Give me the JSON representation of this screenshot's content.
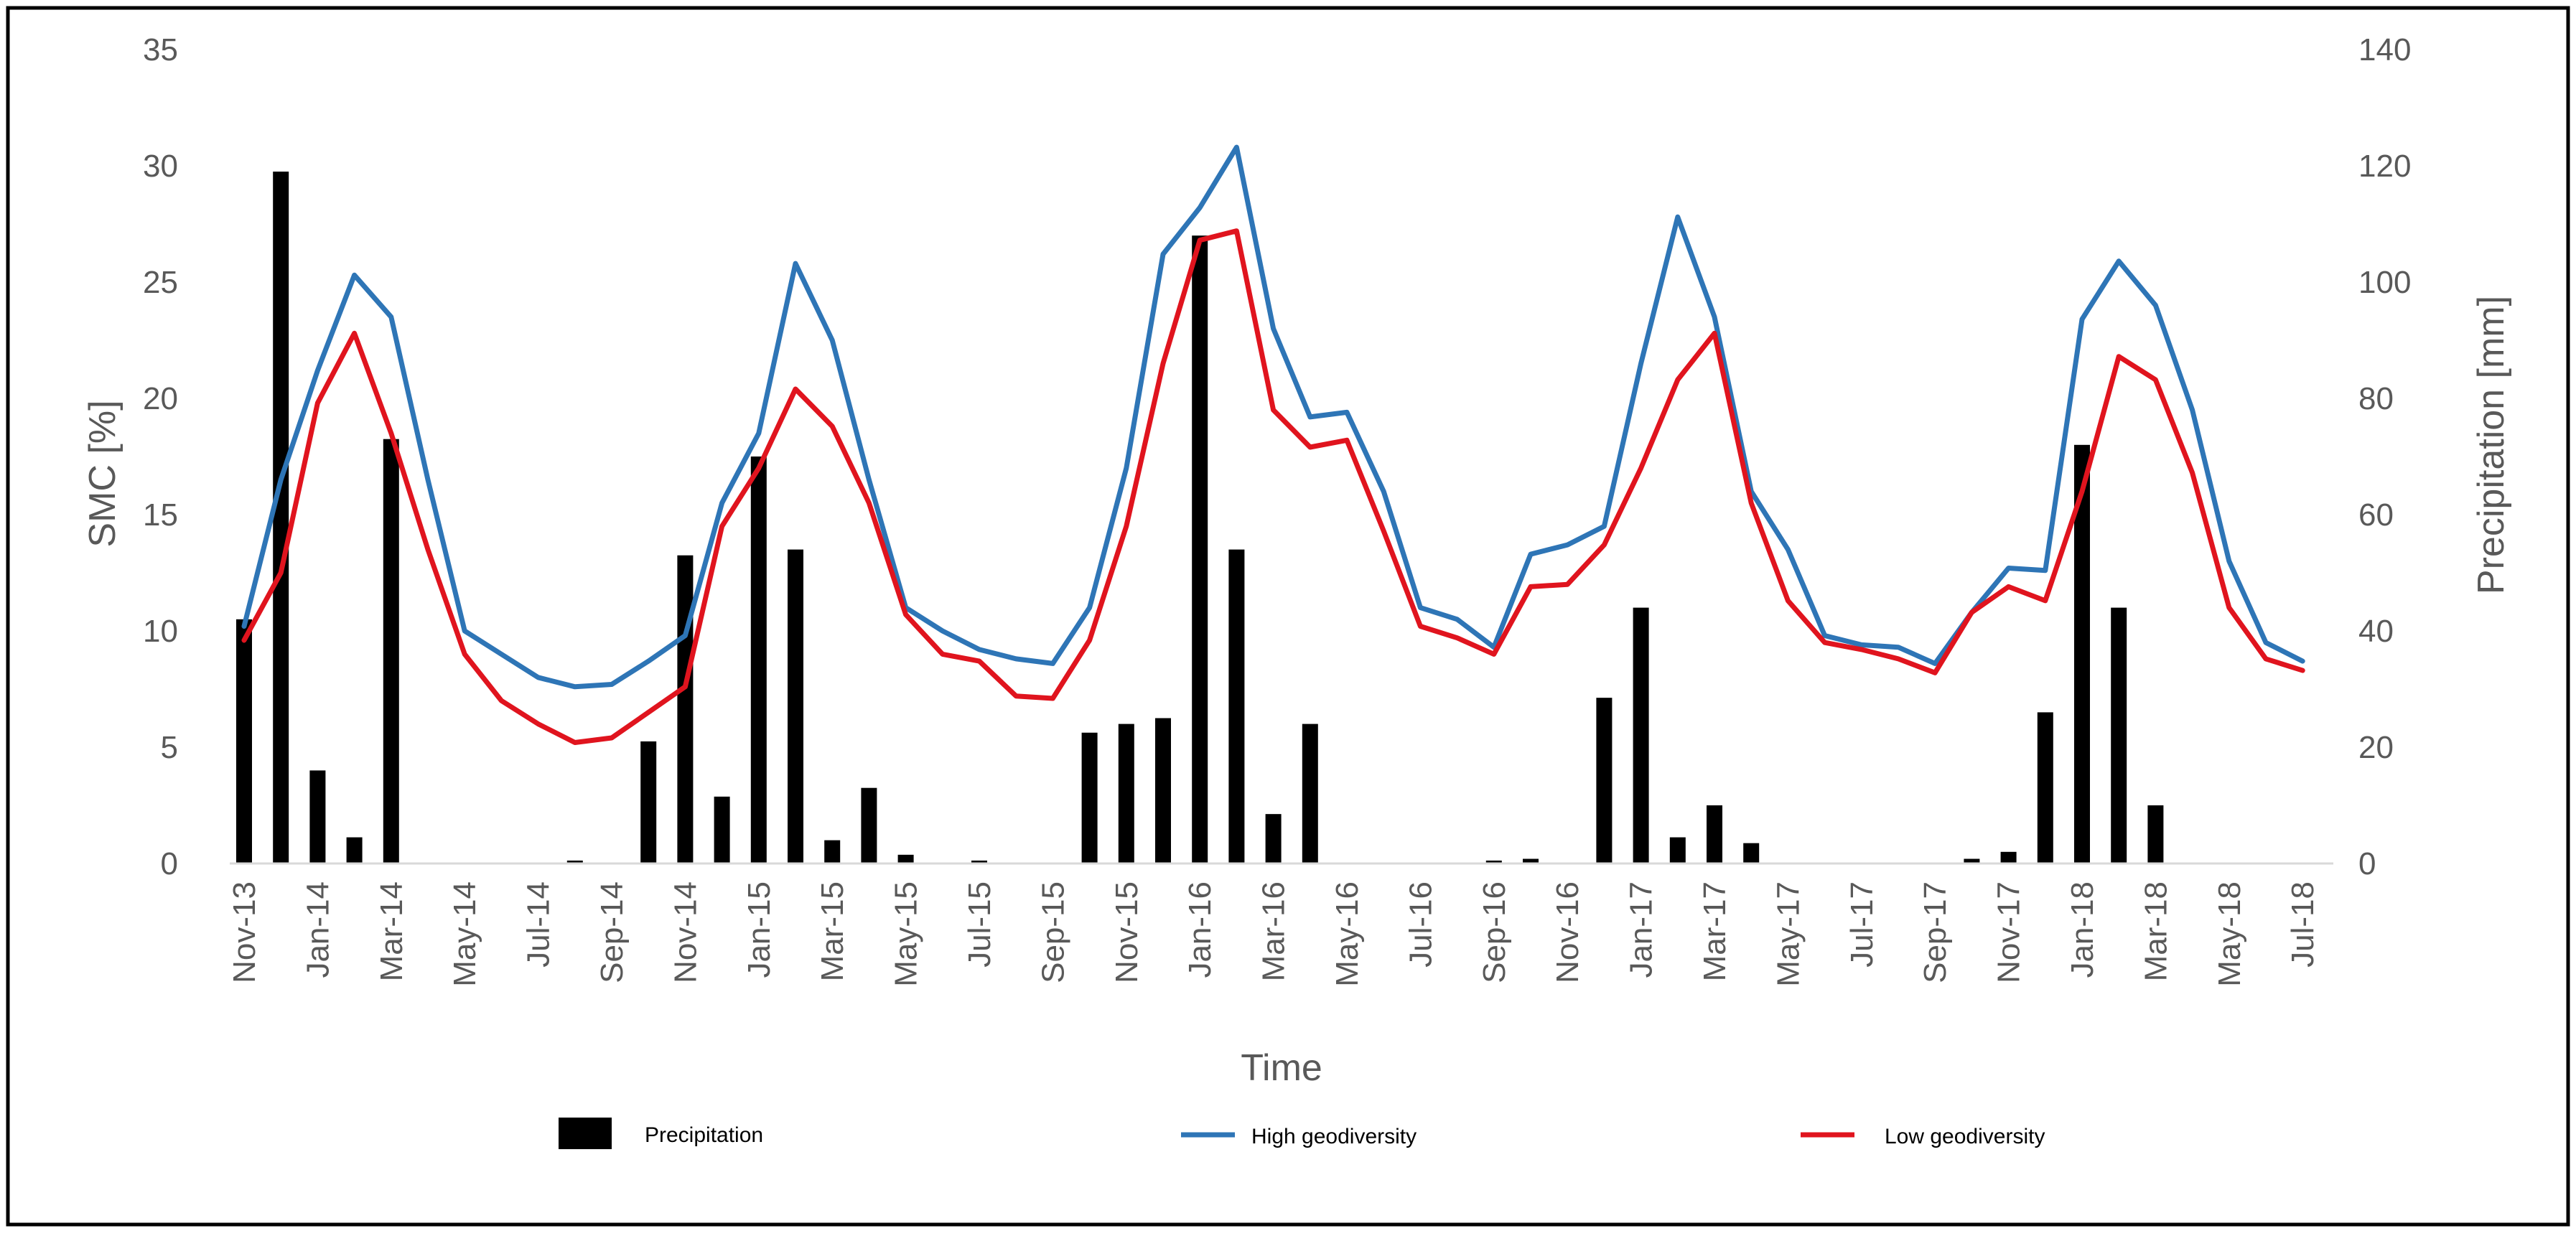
{
  "chart_data": {
    "type": "bar+line",
    "title": "",
    "xlabel": "Time",
    "ylabel_left": "SMC [%]",
    "ylabel_right": "Precipitation [mm]",
    "ylim_left": [
      0,
      35
    ],
    "ylim_right": [
      0,
      140
    ],
    "yticks_left": [
      "0",
      "5",
      "10",
      "15",
      "20",
      "25",
      "30",
      "35"
    ],
    "yticks_right": [
      "0",
      "20",
      "40",
      "60",
      "80",
      "100",
      "120",
      "140"
    ],
    "grid": false,
    "legend_position": "bottom",
    "tick_labels": [
      "Nov-13",
      "Jan-14",
      "Mar-14",
      "May-14",
      "Jul-14",
      "Sep-14",
      "Nov-14",
      "Jan-15",
      "Mar-15",
      "May-15",
      "Jul-15",
      "Sep-15",
      "Nov-15",
      "Jan-16",
      "Mar-16",
      "May-16",
      "Jul-16",
      "Sep-16",
      "Nov-16",
      "Jan-17",
      "Mar-17",
      "May-17",
      "Jul-17",
      "Sep-17",
      "Nov-17",
      "Jan-18",
      "Mar-18",
      "May-18",
      "Jul-18"
    ],
    "months": [
      "Nov-13",
      "Dec-13",
      "Jan-14",
      "Feb-14",
      "Mar-14",
      "Apr-14",
      "May-14",
      "Jun-14",
      "Jul-14",
      "Aug-14",
      "Sep-14",
      "Oct-14",
      "Nov-14",
      "Dec-14",
      "Jan-15",
      "Feb-15",
      "Mar-15",
      "Apr-15",
      "May-15",
      "Jun-15",
      "Jul-15",
      "Aug-15",
      "Sep-15",
      "Oct-15",
      "Nov-15",
      "Dec-15",
      "Jan-16",
      "Feb-16",
      "Mar-16",
      "Apr-16",
      "May-16",
      "Jun-16",
      "Jul-16",
      "Aug-16",
      "Sep-16",
      "Oct-16",
      "Nov-16",
      "Dec-16",
      "Jan-17",
      "Feb-17",
      "Mar-17",
      "Apr-17",
      "May-17",
      "Jun-17",
      "Jul-17",
      "Aug-17",
      "Sep-17",
      "Oct-17",
      "Nov-17",
      "Dec-17",
      "Jan-18",
      "Feb-18",
      "Mar-18",
      "Apr-18",
      "May-18",
      "Jun-18",
      "Jul-18"
    ],
    "series": [
      {
        "name": "Precipitation",
        "type": "bar",
        "axis": "right",
        "color": "#000000",
        "values": [
          42,
          119,
          16,
          4.5,
          73,
          0,
          0,
          0,
          0,
          0.5,
          0,
          21,
          53,
          11.5,
          70,
          54,
          4,
          13,
          1.5,
          0,
          0.5,
          0,
          0,
          22.5,
          24,
          25,
          108,
          54,
          8.5,
          24,
          0,
          0,
          0,
          0,
          0.5,
          0.8,
          0,
          28.5,
          44,
          4.5,
          10,
          3.5,
          0,
          0,
          0,
          0,
          0,
          0.8,
          2,
          26,
          72,
          44,
          10,
          0,
          0,
          0,
          0
        ]
      },
      {
        "name": "High geodiversity",
        "type": "line",
        "axis": "left",
        "color": "#2E75B6",
        "values": [
          10.2,
          16.5,
          21.2,
          25.3,
          23.5,
          16.5,
          10.0,
          9.0,
          8.0,
          7.6,
          7.7,
          8.7,
          9.8,
          15.5,
          18.5,
          25.8,
          22.5,
          16.5,
          11.0,
          10.0,
          9.2,
          8.8,
          8.6,
          11.0,
          17.0,
          26.2,
          28.2,
          30.8,
          23.0,
          19.2,
          19.4,
          16.0,
          11.0,
          10.5,
          9.3,
          13.3,
          13.7,
          14.5,
          21.5,
          27.8,
          23.5,
          16.0,
          13.5,
          9.8,
          9.4,
          9.3,
          8.6,
          10.8,
          12.7,
          12.6,
          23.4,
          25.9,
          24.0,
          19.5,
          13.0,
          9.5,
          8.7
        ]
      },
      {
        "name": "Low geodiversity",
        "type": "line",
        "axis": "left",
        "color": "#E0141E",
        "values": [
          9.6,
          12.5,
          19.8,
          22.8,
          18.5,
          13.5,
          9.0,
          7.0,
          6.0,
          5.2,
          5.4,
          6.5,
          7.6,
          14.5,
          17.0,
          20.4,
          18.8,
          15.5,
          10.7,
          9.0,
          8.7,
          7.2,
          7.1,
          9.6,
          14.5,
          21.5,
          26.8,
          27.2,
          19.5,
          17.9,
          18.2,
          14.3,
          10.2,
          9.7,
          9.0,
          11.9,
          12.0,
          13.7,
          17.0,
          20.8,
          22.8,
          15.5,
          11.3,
          9.5,
          9.2,
          8.8,
          8.2,
          10.8,
          11.9,
          11.3,
          16.0,
          21.8,
          20.8,
          16.8,
          11.0,
          8.8,
          8.3
        ]
      }
    ]
  }
}
